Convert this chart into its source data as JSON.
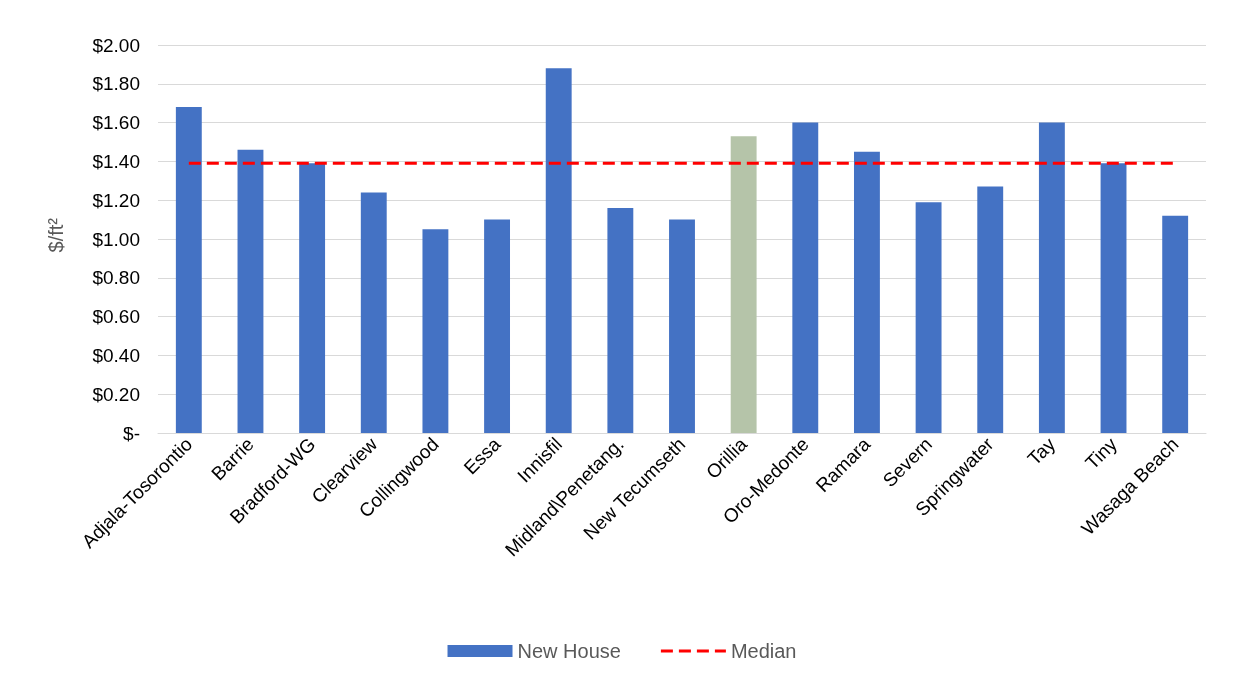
{
  "chart_data": {
    "type": "bar",
    "ylabel": "$/ft²",
    "categories": [
      "Adjala-Tosorontio",
      "Barrie",
      "Bradford-WG",
      "Clearview",
      "Collingwood",
      "Essa",
      "Innisfil",
      "Midland\\Penetang.",
      "New Tecumseth",
      "Orillia",
      "Oro-Medonte",
      "Ramara",
      "Severn",
      "Springwater",
      "Tay",
      "Tiny",
      "Wasaga Beach"
    ],
    "series": [
      {
        "name": "New House",
        "color": "#4472c4",
        "colors": [
          "#4472c4",
          "#4472c4",
          "#4472c4",
          "#4472c4",
          "#4472c4",
          "#4472c4",
          "#4472c4",
          "#4472c4",
          "#4472c4",
          "#b5c4a9",
          "#4472c4",
          "#4472c4",
          "#4472c4",
          "#4472c4",
          "#4472c4",
          "#4472c4",
          "#4472c4"
        ],
        "values": [
          1.68,
          1.46,
          1.39,
          1.24,
          1.05,
          1.1,
          1.88,
          1.16,
          1.1,
          1.53,
          1.6,
          1.45,
          1.19,
          1.27,
          1.6,
          1.39,
          1.12
        ]
      },
      {
        "name": "Median",
        "type": "line",
        "color": "#ff0000",
        "line_style": "dashed",
        "marker": "none",
        "values": [
          1.39,
          1.39,
          1.39,
          1.39,
          1.39,
          1.39,
          1.39,
          1.39,
          1.39,
          1.39,
          1.39,
          1.39,
          1.39,
          1.39,
          1.39,
          1.39,
          1.39
        ]
      }
    ],
    "ylim": [
      0,
      2
    ],
    "yticks": [
      {
        "value": 0,
        "label": "$-"
      },
      {
        "value": 0.2,
        "label": "$0.20"
      },
      {
        "value": 0.4,
        "label": "$0.40"
      },
      {
        "value": 0.6,
        "label": "$0.60"
      },
      {
        "value": 0.8,
        "label": "$0.80"
      },
      {
        "value": 1,
        "label": "$1.00"
      },
      {
        "value": 1.2,
        "label": "$1.20"
      },
      {
        "value": 1.4,
        "label": "$1.40"
      },
      {
        "value": 1.6,
        "label": "$1.60"
      },
      {
        "value": 1.8,
        "label": "$1.80"
      },
      {
        "value": 2,
        "label": "$2.00"
      }
    ],
    "grid": "y",
    "legend": "bottom"
  }
}
